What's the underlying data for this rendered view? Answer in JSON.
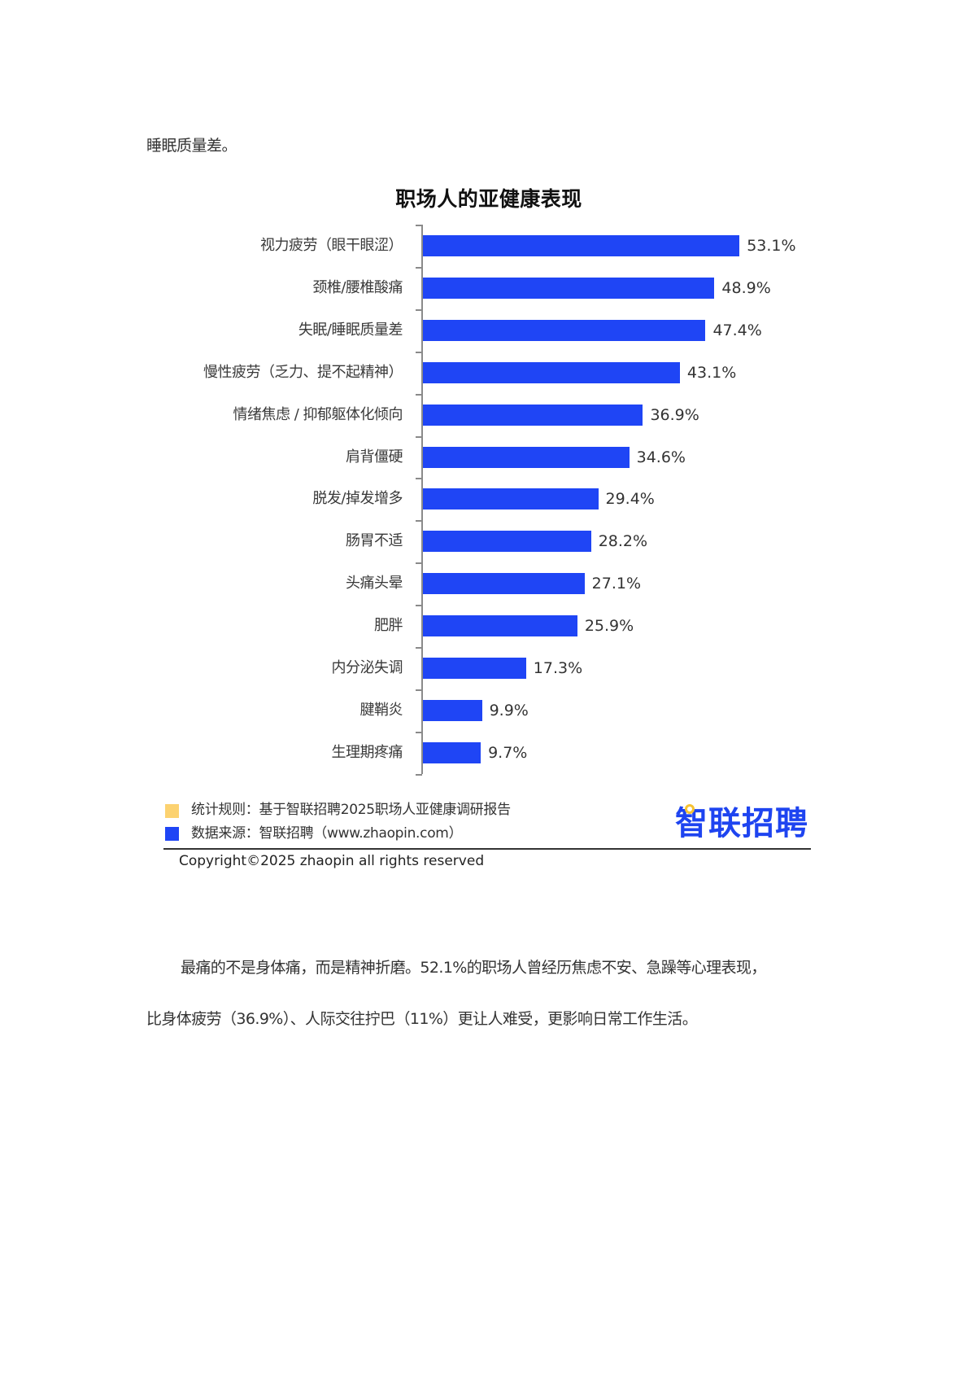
{
  "document": {
    "lead_text": "睡眠质量差。",
    "paragraph_lines": [
      "最痛的不是身体痛，而是精神折磨。52.1%的职场人曾经历焦虑不安、急躁等心理表现，",
      "比身体疲劳（36.9%）、人际交往拧巴（11%）更让人难受，更影响日常工作生活。"
    ]
  },
  "chart_data": {
    "type": "bar",
    "orientation": "horizontal",
    "title": "职场人的亚健康表现",
    "xlabel": "",
    "ylabel": "",
    "unit": "%",
    "grid": false,
    "categories": [
      "视力疲劳（眼干眼涩）",
      "颈椎/腰椎酸痛",
      "失眠/睡眠质量差",
      "慢性疲劳（乏力、提不起精神）",
      "情绪焦虑 / 抑郁躯体化倾向",
      "肩背僵硬",
      "脱发/掉发增多",
      "肠胃不适",
      "头痛头晕",
      "肥胖",
      "内分泌失调",
      "腱鞘炎",
      "生理期疼痛"
    ],
    "values": [
      53.1,
      48.9,
      47.4,
      43.1,
      36.9,
      34.6,
      29.4,
      28.2,
      27.1,
      25.9,
      17.3,
      9.9,
      9.7
    ],
    "value_labels": [
      "53.1%",
      "48.9%",
      "47.4%",
      "43.1%",
      "36.9%",
      "34.6%",
      "29.4%",
      "28.2%",
      "27.1%",
      "25.9%",
      "17.3%",
      "9.9%",
      "9.7%"
    ],
    "bar_color": "#1f45f5"
  },
  "footer": {
    "legend": [
      {
        "text": "统计规则：基于智联招聘2025职场人亚健康调研报告",
        "color": "#fcd270"
      },
      {
        "text": "数据来源：智联招聘（www.zhaopin.com）",
        "color": "#1f45f5"
      }
    ],
    "logo_text": "智联招聘",
    "copyright": "Copyright©2025 zhaopin all rights reserved"
  }
}
